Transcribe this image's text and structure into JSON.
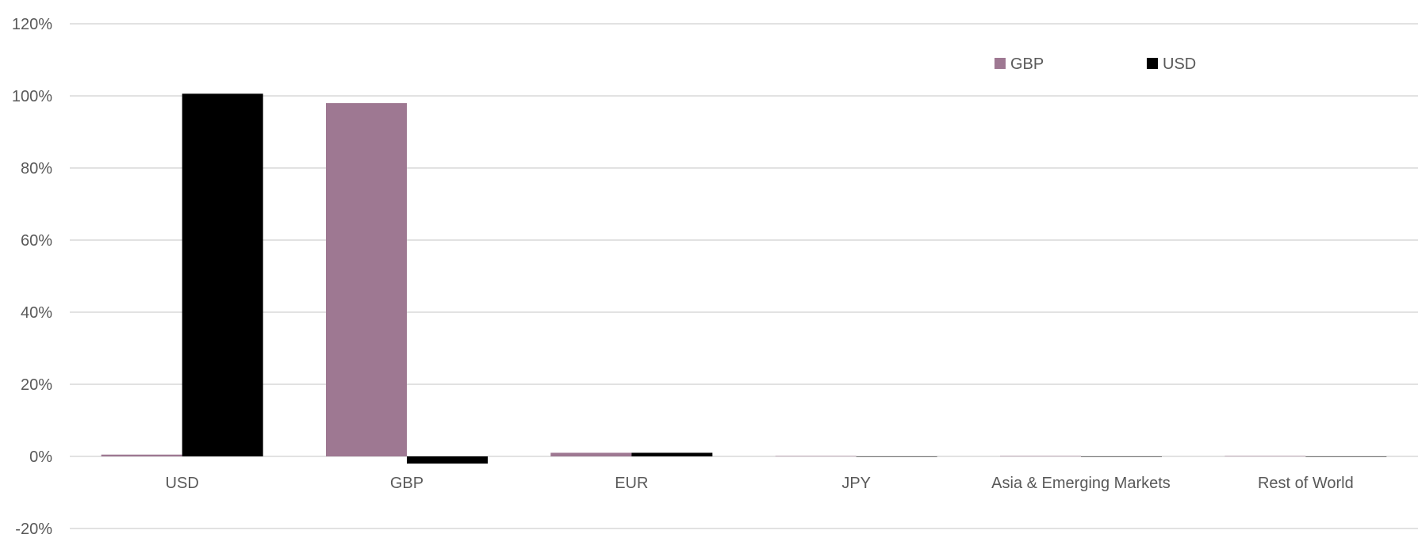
{
  "chart_data": {
    "type": "bar",
    "categories": [
      "USD",
      "GBP",
      "EUR",
      "JPY",
      "Asia & Emerging Markets",
      "Rest of World"
    ],
    "series": [
      {
        "name": "GBP",
        "color": "#9e7892",
        "values": [
          0.5,
          98.0,
          1.0,
          0.1,
          0.1,
          0.1
        ]
      },
      {
        "name": "USD",
        "color": "#000000",
        "values": [
          100.6,
          -2.0,
          1.0,
          0.0,
          0.0,
          0.0
        ]
      }
    ],
    "ylim": [
      -20,
      120
    ],
    "yticks": [
      -20,
      0,
      20,
      40,
      60,
      80,
      100,
      120
    ],
    "y_tick_suffix": "%",
    "grid": true,
    "legend_position": "top-right",
    "title": "",
    "xlabel": "",
    "ylabel": ""
  }
}
